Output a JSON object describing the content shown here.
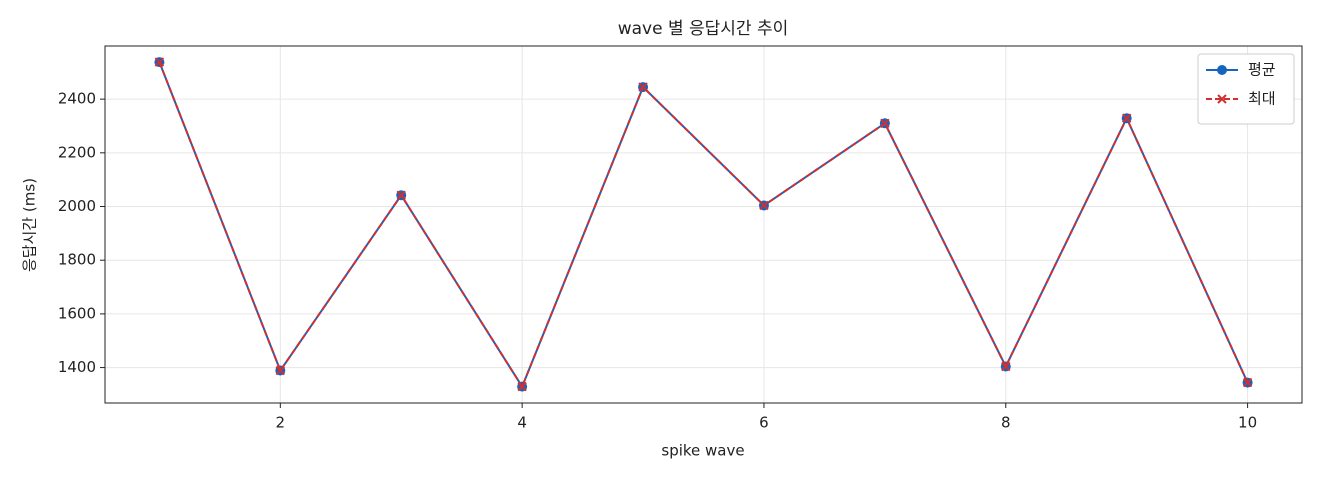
{
  "chart_data": {
    "type": "line",
    "title": "wave 별 응답시간 추이",
    "xlabel": "spike wave",
    "ylabel": "응답시간 (ms)",
    "x": [
      1,
      2,
      3,
      4,
      5,
      6,
      7,
      8,
      9,
      10
    ],
    "series": [
      {
        "name": "평균",
        "color": "#1565c0",
        "values": [
          2538,
          1389,
          2042,
          1329,
          2445,
          2004,
          2310,
          1404,
          2329,
          1344
        ]
      },
      {
        "name": "최대",
        "color": "#d32f2f",
        "values": [
          2538,
          1389,
          2042,
          1329,
          2445,
          2004,
          2310,
          1404,
          2329,
          1344
        ]
      }
    ],
    "xlim": [
      0.55,
      10.45
    ],
    "ylim": [
      1268,
      2598
    ],
    "xticks": [
      2,
      4,
      6,
      8,
      10
    ],
    "yticks": [
      1400,
      1600,
      1800,
      2000,
      2200,
      2400
    ],
    "grid": true,
    "legend": "upper right"
  }
}
